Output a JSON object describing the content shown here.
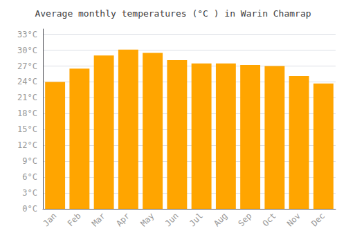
{
  "chart_data": {
    "type": "bar",
    "title": "Average monthly temperatures (°C ) in Warin Chamrap",
    "categories": [
      "Jan",
      "Feb",
      "Mar",
      "Apr",
      "May",
      "Jun",
      "Jul",
      "Aug",
      "Sep",
      "Oct",
      "Nov",
      "Dec"
    ],
    "values": [
      24.0,
      26.5,
      29.0,
      30.1,
      29.5,
      28.1,
      27.5,
      27.5,
      27.2,
      27.0,
      25.1,
      23.7
    ],
    "color": "#FFA500",
    "ylim": [
      0,
      34
    ],
    "yticks": [
      {
        "value": 0,
        "label": "0°C"
      },
      {
        "value": 3,
        "label": "3°C"
      },
      {
        "value": 6,
        "label": "6°C"
      },
      {
        "value": 9,
        "label": "9°C"
      },
      {
        "value": 12,
        "label": "12°C"
      },
      {
        "value": 15,
        "label": "15°C"
      },
      {
        "value": 18,
        "label": "18°C"
      },
      {
        "value": 21,
        "label": "21°C"
      },
      {
        "value": 24,
        "label": "24°C"
      },
      {
        "value": 27,
        "label": "27°C"
      },
      {
        "value": 30,
        "label": "30°C"
      },
      {
        "value": 33,
        "label": "33°C"
      }
    ],
    "grid": true
  }
}
